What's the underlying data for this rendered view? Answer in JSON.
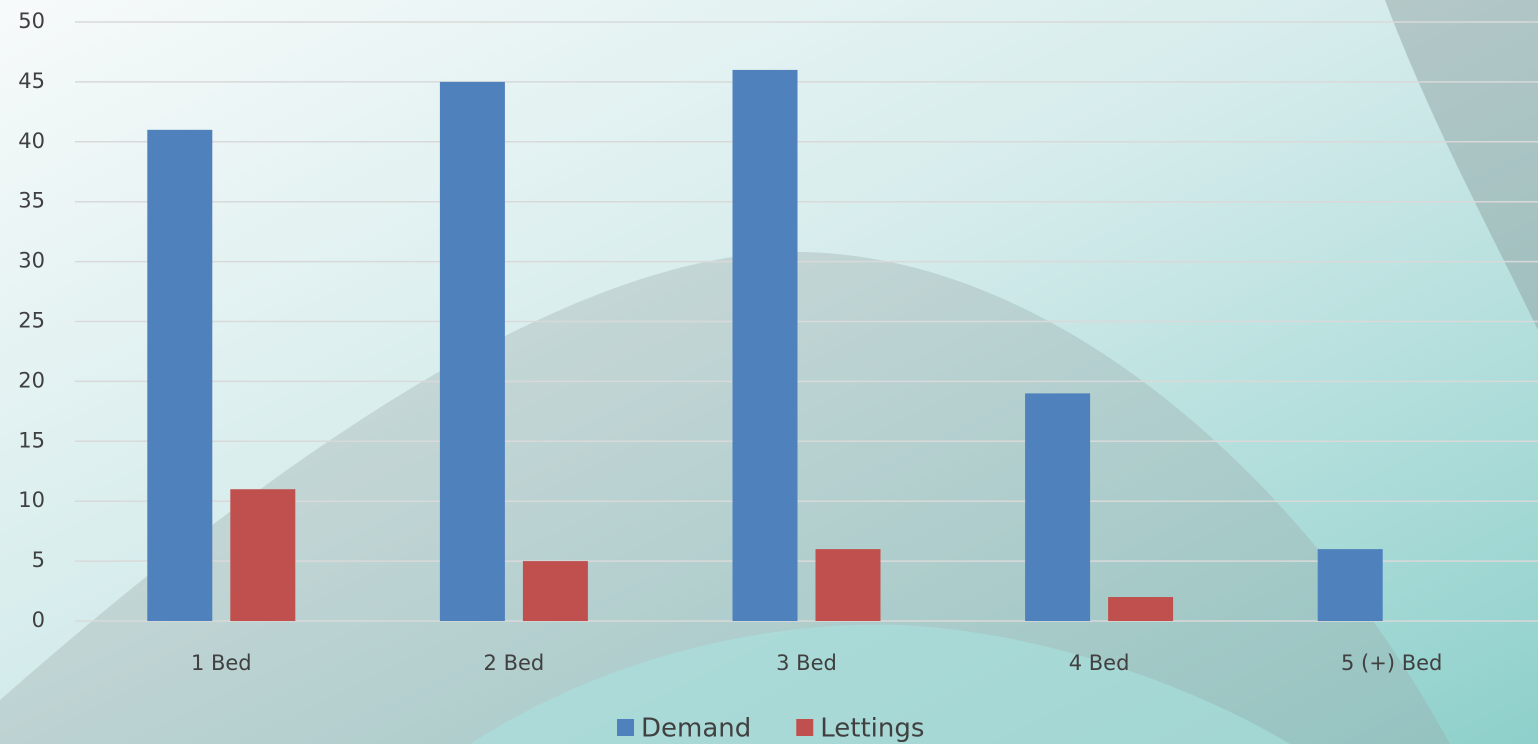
{
  "chart_data": {
    "type": "bar",
    "categories": [
      "1 Bed",
      "2 Bed",
      "3 Bed",
      "4 Bed",
      "5 (+) Bed"
    ],
    "series": [
      {
        "name": "Demand",
        "color": "#4f81bd",
        "values": [
          41,
          45,
          46,
          19,
          6
        ]
      },
      {
        "name": "Lettings",
        "color": "#c0504d",
        "values": [
          11,
          5,
          6,
          2,
          0
        ]
      }
    ],
    "ylim": [
      0,
      50
    ],
    "yticks": [
      0,
      5,
      10,
      15,
      20,
      25,
      30,
      35,
      40,
      45,
      50
    ],
    "grid": true,
    "legend": "bottom"
  }
}
